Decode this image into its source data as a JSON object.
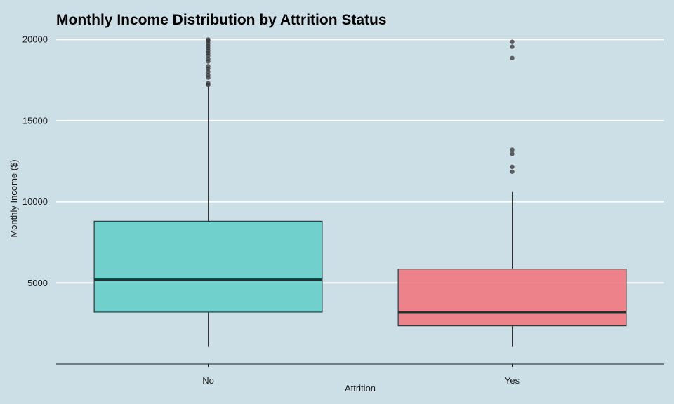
{
  "chart_data": {
    "type": "box",
    "title": "Monthly Income Distribution by Attrition Status",
    "xlabel": "Attrition",
    "ylabel": "Monthly Income ($)",
    "ylim": [
      0,
      20700
    ],
    "yticks": [
      5000,
      10000,
      15000,
      20000
    ],
    "grid": "horizontal",
    "legend": "none",
    "categories": [
      "No",
      "Yes"
    ],
    "boxes": [
      {
        "category": "No",
        "min": 1050,
        "q1": 3200,
        "median": 5200,
        "q3": 8800,
        "max": 17100,
        "outliers": [
          17200,
          17300,
          17650,
          17800,
          18000,
          18200,
          18350,
          18650,
          18800,
          19000,
          19150,
          19300,
          19450,
          19600,
          19750,
          19900,
          19990
        ],
        "color": "#5fcfc7"
      },
      {
        "category": "Yes",
        "min": 1050,
        "q1": 2350,
        "median": 3200,
        "q3": 5850,
        "max": 10600,
        "outliers": [
          11850,
          12150,
          12950,
          13200,
          18850,
          19550,
          19850
        ],
        "color": "#f2727a"
      }
    ]
  }
}
